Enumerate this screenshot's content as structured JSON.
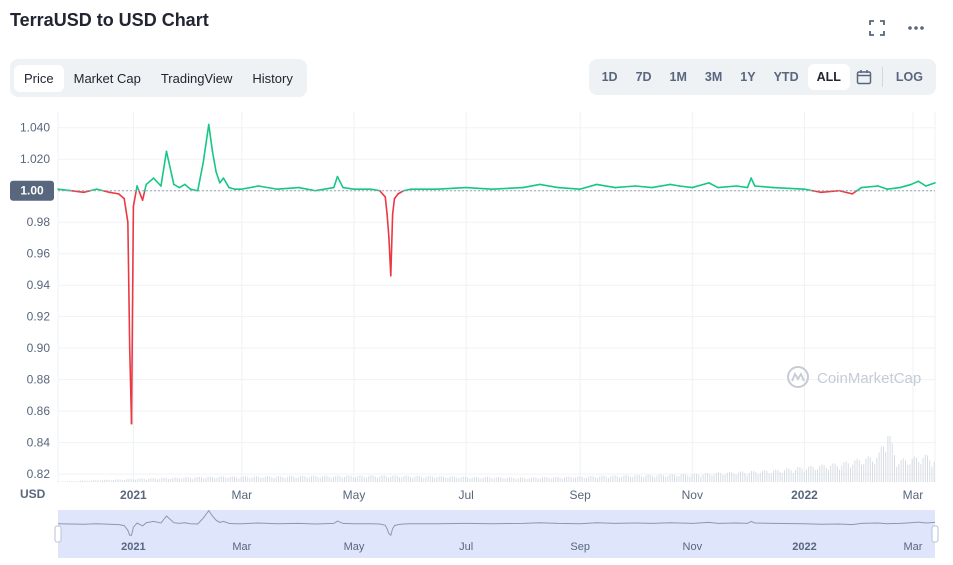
{
  "header": {
    "title": "TerraUSD to USD Chart"
  },
  "tabs": [
    {
      "label": "Price",
      "active": true
    },
    {
      "label": "Market Cap",
      "active": false
    },
    {
      "label": "TradingView",
      "active": false
    },
    {
      "label": "History",
      "active": false
    }
  ],
  "ranges": [
    {
      "label": "1D",
      "active": false
    },
    {
      "label": "7D",
      "active": false
    },
    {
      "label": "1M",
      "active": false
    },
    {
      "label": "3M",
      "active": false
    },
    {
      "label": "1Y",
      "active": false
    },
    {
      "label": "YTD",
      "active": false
    },
    {
      "label": "ALL",
      "active": true
    }
  ],
  "log_label": "LOG",
  "watermark": "CoinMarketCap",
  "colors": {
    "up": "#16c784",
    "down": "#ea3943",
    "grid": "#eff2f5",
    "axis_text": "#58667e",
    "navigator_fill": "#dfe6fb"
  },
  "chart_data": {
    "type": "line",
    "y_unit_label": "USD",
    "baseline": 1.0,
    "ylim": [
      0.815,
      1.05
    ],
    "yticks": [
      0.82,
      0.84,
      0.86,
      0.88,
      0.9,
      0.92,
      0.94,
      0.96,
      0.98,
      1.0,
      1.02,
      1.04
    ],
    "xlim": [
      "2020-11-21",
      "2022-03-13"
    ],
    "x_ticks": [
      {
        "label": "2021",
        "date": "2021-01-01"
      },
      {
        "label": "Mar",
        "date": "2021-03-01"
      },
      {
        "label": "May",
        "date": "2021-05-01"
      },
      {
        "label": "Jul",
        "date": "2021-07-01"
      },
      {
        "label": "Sep",
        "date": "2021-09-01"
      },
      {
        "label": "Nov",
        "date": "2021-11-01"
      },
      {
        "label": "2022",
        "date": "2022-01-01"
      },
      {
        "label": "Mar",
        "date": "2022-03-01"
      }
    ],
    "grid": true,
    "series": [
      {
        "x": [
          "2020-11-21",
          "2020-11-28",
          "2020-12-05",
          "2020-12-12",
          "2020-12-19",
          "2020-12-24",
          "2020-12-27",
          "2020-12-29",
          "2020-12-30",
          "2020-12-31",
          "2021-01-01",
          "2021-01-03",
          "2021-01-06",
          "2021-01-08",
          "2021-01-12",
          "2021-01-16",
          "2021-01-19",
          "2021-01-23",
          "2021-01-26",
          "2021-01-29",
          "2021-02-01",
          "2021-02-05",
          "2021-02-08",
          "2021-02-11",
          "2021-02-13",
          "2021-02-15",
          "2021-02-17",
          "2021-02-19",
          "2021-02-22",
          "2021-02-25",
          "2021-03-01",
          "2021-03-10",
          "2021-03-20",
          "2021-04-01",
          "2021-04-10",
          "2021-04-20",
          "2021-04-22",
          "2021-04-25",
          "2021-05-01",
          "2021-05-10",
          "2021-05-15",
          "2021-05-18",
          "2021-05-19",
          "2021-05-20",
          "2021-05-21",
          "2021-05-22",
          "2021-05-23",
          "2021-05-25",
          "2021-05-28",
          "2021-06-01",
          "2021-06-15",
          "2021-07-01",
          "2021-07-15",
          "2021-08-01",
          "2021-08-10",
          "2021-08-20",
          "2021-09-01",
          "2021-09-10",
          "2021-09-20",
          "2021-10-01",
          "2021-10-10",
          "2021-10-20",
          "2021-10-25",
          "2021-11-01",
          "2021-11-10",
          "2021-11-15",
          "2021-11-25",
          "2021-12-01",
          "2021-12-03",
          "2021-12-05",
          "2021-12-15",
          "2022-01-01",
          "2022-01-10",
          "2022-01-20",
          "2022-01-27",
          "2022-02-01",
          "2022-02-10",
          "2022-02-15",
          "2022-02-22",
          "2022-02-28",
          "2022-03-04",
          "2022-03-08",
          "2022-03-13"
        ],
        "y": [
          1.001,
          1.0,
          0.999,
          1.001,
          0.999,
          0.998,
          0.995,
          0.98,
          0.9,
          0.852,
          0.99,
          1.003,
          0.994,
          1.004,
          1.008,
          1.003,
          1.025,
          1.004,
          1.002,
          1.004,
          1.001,
          1.0,
          1.018,
          1.042,
          1.025,
          1.012,
          1.005,
          1.008,
          1.002,
          1.001,
          1.001,
          1.003,
          1.001,
          1.002,
          1.0,
          1.002,
          1.009,
          1.002,
          1.001,
          1.001,
          1.0,
          0.996,
          0.985,
          0.97,
          0.946,
          0.985,
          0.995,
          0.998,
          1.0,
          1.001,
          1.001,
          1.002,
          1.001,
          1.002,
          1.004,
          1.002,
          1.001,
          1.004,
          1.002,
          1.003,
          1.002,
          1.004,
          1.003,
          1.002,
          1.005,
          1.002,
          1.003,
          1.002,
          1.008,
          1.003,
          1.002,
          1.001,
          0.999,
          1.0,
          0.998,
          1.002,
          1.003,
          1.001,
          1.002,
          1.004,
          1.006,
          1.003,
          1.005
        ]
      }
    ],
    "volume": {
      "x": [
        "2020-11-21",
        "2021-01-01",
        "2021-02-13",
        "2021-05-20",
        "2021-08-01",
        "2021-11-01",
        "2021-12-15",
        "2022-01-20",
        "2022-02-10",
        "2022-02-15",
        "2022-02-20",
        "2022-03-01",
        "2022-03-08",
        "2022-03-13"
      ],
      "relative": [
        0.01,
        0.06,
        0.1,
        0.12,
        0.08,
        0.15,
        0.22,
        0.35,
        0.5,
        1.0,
        0.4,
        0.45,
        0.5,
        0.42
      ]
    }
  }
}
